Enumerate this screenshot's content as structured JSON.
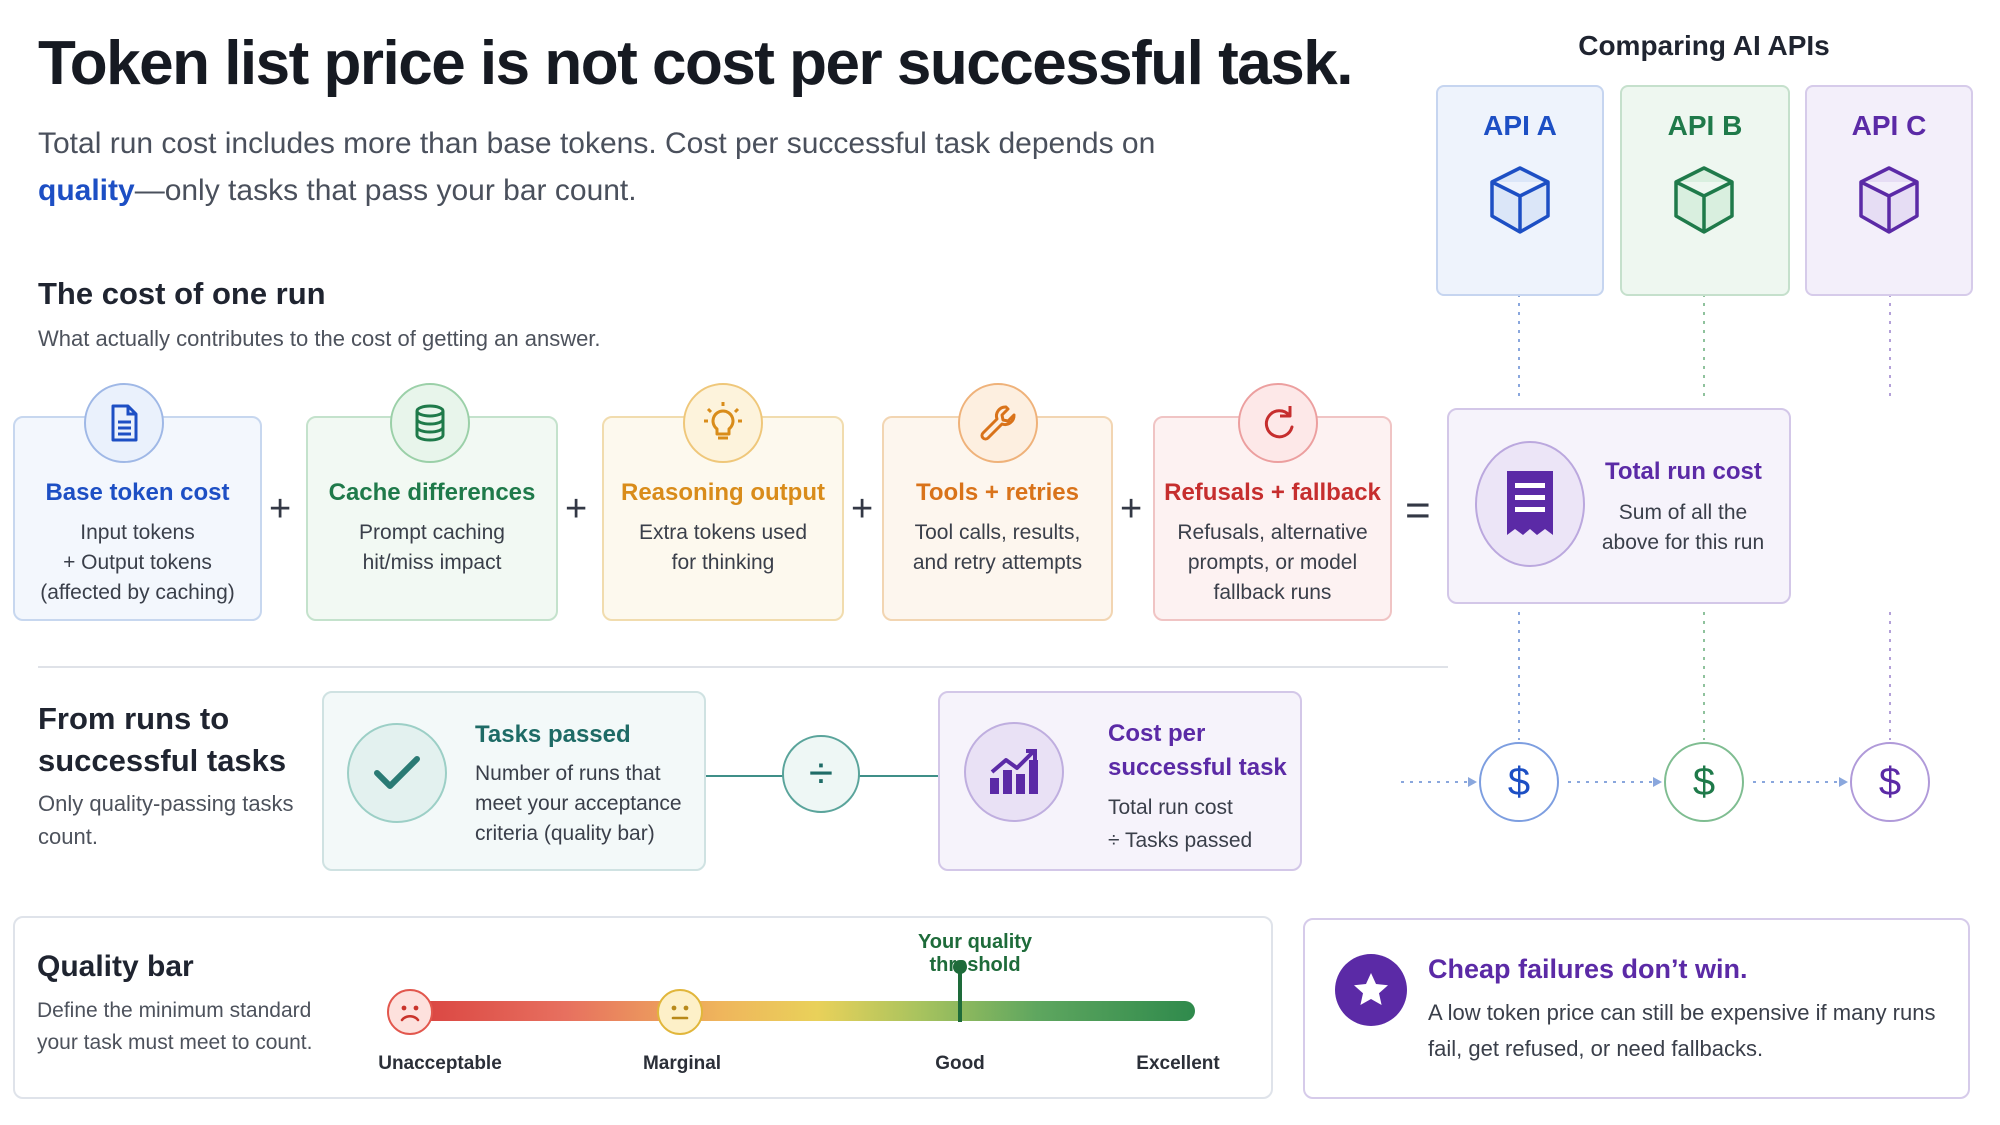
{
  "header": {
    "title": "Token list price is not cost per successful task.",
    "subtitle_pre": "Total run cost includes more than base tokens. Cost per successful task depends on",
    "subtitle_quality": "quality",
    "subtitle_post": "—only tasks that pass your bar count."
  },
  "cost_of_run": {
    "title": "The cost of one run",
    "subtitle": "What actually contributes to the cost of getting an answer.",
    "steps": [
      {
        "title": "Base token cost",
        "lines": [
          "Input tokens",
          "+ Output tokens",
          "(affected by caching)"
        ],
        "icon": "document-icon",
        "color": "#1d4fc4"
      },
      {
        "title": "Cache differences",
        "lines": [
          "Prompt caching",
          "hit/miss impact"
        ],
        "icon": "database-icon",
        "color": "#1f7a4a"
      },
      {
        "title": "Reasoning output",
        "lines": [
          "Extra tokens used",
          "for thinking"
        ],
        "icon": "lightbulb-icon",
        "color": "#d98c1a"
      },
      {
        "title": "Tools + retries",
        "lines": [
          "Tool calls, results,",
          "and retry attempts"
        ],
        "icon": "wrench-icon",
        "color": "#d9731a"
      },
      {
        "title": "Refusals + fallback",
        "lines": [
          "Refusals, alternative",
          "prompts, or model",
          "fallback runs"
        ],
        "icon": "refresh-icon",
        "color": "#c62e2e"
      }
    ],
    "operators": [
      "+",
      "+",
      "+",
      "+",
      "="
    ],
    "total": {
      "title": "Total run cost",
      "lines": [
        "Sum of all the",
        "above for this run"
      ],
      "icon": "receipt-icon",
      "color": "#5b2aa6"
    }
  },
  "runs_to_tasks": {
    "title_lines": [
      "From runs to",
      "successful tasks"
    ],
    "subtitle_lines": [
      "Only quality-passing tasks",
      "count."
    ],
    "tasks_passed": {
      "title": "Tasks passed",
      "lines": [
        "Number of runs that",
        "meet your acceptance",
        "criteria (quality bar)"
      ],
      "icon": "checkmark-icon"
    },
    "divide": "÷",
    "cost_per_task": {
      "title_lines": [
        "Cost per",
        "successful task"
      ],
      "lines": [
        "Total run cost",
        "÷ Tasks passed"
      ],
      "icon": "bar-chart-icon"
    }
  },
  "apis": {
    "title": "Comparing AI APIs",
    "items": [
      {
        "label": "API A",
        "color": "#1d4fc4",
        "bg": "#eef3fc",
        "border": "#c6d5f0"
      },
      {
        "label": "API B",
        "color": "#1f7a4a",
        "bg": "#eef7f0",
        "border": "#c5e0cc"
      },
      {
        "label": "API C",
        "color": "#5b2aa6",
        "bg": "#f3effa",
        "border": "#d6cbea"
      }
    ],
    "dollar": "$"
  },
  "quality": {
    "title": "Quality bar",
    "subtitle_lines": [
      "Define the minimum standard",
      "your task must meet to count."
    ],
    "threshold_label": "Your quality threshold",
    "levels": [
      "Unacceptable",
      "Marginal",
      "Good",
      "Excellent"
    ],
    "threshold_level": "Good"
  },
  "callout": {
    "title": "Cheap failures don’t win.",
    "lines": [
      "A low token price can still be expensive if many runs",
      "fail, get refused, or need fallbacks."
    ],
    "icon": "star-icon"
  }
}
